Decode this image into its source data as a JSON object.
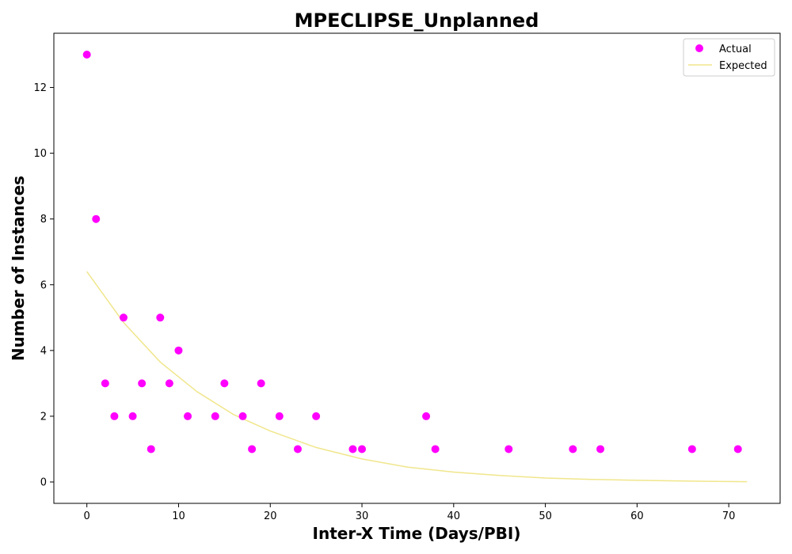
{
  "chart_data": {
    "type": "scatter",
    "title": "MPECLIPSE_Unplanned",
    "xlabel": "Inter-X Time (Days/PBI)",
    "ylabel": "Number of Instances",
    "xlim": [
      -3.6,
      75.6
    ],
    "ylim": [
      -0.65,
      13.65
    ],
    "xticks": [
      0,
      10,
      20,
      30,
      40,
      50,
      60,
      70
    ],
    "yticks": [
      0,
      2,
      4,
      6,
      8,
      10,
      12
    ],
    "grid": false,
    "legend_position": "top-right",
    "series": [
      {
        "name": "Actual",
        "kind": "scatter",
        "color": "#ff00ff",
        "points": [
          {
            "x": 0,
            "y": 13
          },
          {
            "x": 1,
            "y": 8
          },
          {
            "x": 2,
            "y": 3
          },
          {
            "x": 3,
            "y": 2
          },
          {
            "x": 4,
            "y": 5
          },
          {
            "x": 5,
            "y": 2
          },
          {
            "x": 6,
            "y": 3
          },
          {
            "x": 7,
            "y": 1
          },
          {
            "x": 8,
            "y": 5
          },
          {
            "x": 9,
            "y": 3
          },
          {
            "x": 10,
            "y": 4
          },
          {
            "x": 11,
            "y": 2
          },
          {
            "x": 14,
            "y": 2
          },
          {
            "x": 15,
            "y": 3
          },
          {
            "x": 17,
            "y": 2
          },
          {
            "x": 18,
            "y": 1
          },
          {
            "x": 19,
            "y": 3
          },
          {
            "x": 21,
            "y": 2
          },
          {
            "x": 23,
            "y": 1
          },
          {
            "x": 25,
            "y": 2
          },
          {
            "x": 29,
            "y": 1
          },
          {
            "x": 30,
            "y": 1
          },
          {
            "x": 37,
            "y": 2
          },
          {
            "x": 38,
            "y": 1
          },
          {
            "x": 46,
            "y": 1
          },
          {
            "x": 53,
            "y": 1
          },
          {
            "x": 56,
            "y": 1
          },
          {
            "x": 66,
            "y": 1
          },
          {
            "x": 71,
            "y": 1
          }
        ]
      },
      {
        "name": "Expected",
        "kind": "line",
        "color": "#f0e68c",
        "points": [
          {
            "x": 0,
            "y": 6.4
          },
          {
            "x": 4,
            "y": 4.85
          },
          {
            "x": 8,
            "y": 3.65
          },
          {
            "x": 12,
            "y": 2.75
          },
          {
            "x": 16,
            "y": 2.05
          },
          {
            "x": 20,
            "y": 1.55
          },
          {
            "x": 25,
            "y": 1.05
          },
          {
            "x": 30,
            "y": 0.7
          },
          {
            "x": 35,
            "y": 0.45
          },
          {
            "x": 40,
            "y": 0.3
          },
          {
            "x": 45,
            "y": 0.2
          },
          {
            "x": 50,
            "y": 0.12
          },
          {
            "x": 55,
            "y": 0.08
          },
          {
            "x": 60,
            "y": 0.05
          },
          {
            "x": 65,
            "y": 0.03
          },
          {
            "x": 72,
            "y": 0.01
          }
        ]
      }
    ]
  }
}
